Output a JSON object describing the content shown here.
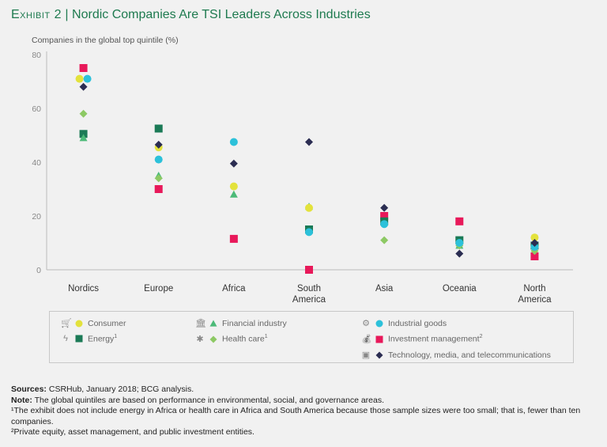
{
  "header": {
    "exhibit": "Exhibit 2",
    "separator": "|",
    "title": "Nordic Companies Are TSI Leaders Across Industries"
  },
  "chart_data": {
    "type": "scatter",
    "title": "Nordic Companies Are TSI Leaders Across Industries",
    "ylabel": "Companies in the global top quintile (%)",
    "ylim": [
      0,
      80
    ],
    "yticks": [
      0,
      20,
      40,
      60,
      80
    ],
    "grid": false,
    "legend_placement": "bottom",
    "categories": [
      "Nordics",
      "Europe",
      "Africa",
      "South America",
      "Asia",
      "Oceania",
      "North America"
    ],
    "category_labels": [
      [
        "Nordics"
      ],
      [
        "Europe"
      ],
      [
        "Africa"
      ],
      [
        "South",
        "America"
      ],
      [
        "Asia"
      ],
      [
        "Oceania"
      ],
      [
        "North",
        "America"
      ]
    ],
    "series": [
      {
        "name": "Consumer",
        "marker": "circle",
        "color": "#e3e23c",
        "icon": "shopping-cart-icon",
        "values": [
          71,
          45.5,
          31,
          23,
          null,
          null,
          12
        ]
      },
      {
        "name": "Financial industry",
        "marker": "triangle",
        "color": "#4cba78",
        "icon": "bank-icon",
        "values": [
          49,
          35,
          28,
          23.5,
          null,
          9,
          null
        ]
      },
      {
        "name": "Industrial goods",
        "marker": "circle",
        "color": "#2cc1da",
        "icon": "gears-icon",
        "values": [
          71,
          41,
          47.5,
          14,
          17,
          10,
          8.5
        ]
      },
      {
        "name": "Energy",
        "sup": "1",
        "marker": "square",
        "color": "#1b7a56",
        "icon": "lightning-icon",
        "values": [
          50.5,
          52.5,
          null,
          15,
          18,
          11,
          9
        ]
      },
      {
        "name": "Health care",
        "sup": "1",
        "marker": "diamond",
        "color": "#8dc964",
        "icon": "medical-icon",
        "values": [
          58,
          34,
          null,
          null,
          11,
          9,
          7
        ]
      },
      {
        "name": "Investment management",
        "sup": "2",
        "marker": "square",
        "color": "#e8195a",
        "icon": "money-bag-icon",
        "values": [
          75,
          30,
          11.5,
          0,
          20,
          18,
          5
        ]
      },
      {
        "name": "Technology, media, and telecommunications",
        "marker": "diamond",
        "color": "#2b2d52",
        "icon": "chip-icon",
        "values": [
          68,
          46.5,
          39.5,
          47.5,
          23,
          6,
          10
        ]
      }
    ]
  },
  "notes": {
    "sources_label": "Sources:",
    "sources": " CSRHub, January 2018; BCG analysis.",
    "note_label": "Note:",
    "note": " The global quintiles are based on performance in environmental, social, and governance areas.",
    "fn1": "¹The exhibit does not include energy in Africa or health care in Africa and South America because those sample sizes were too small; that is, fewer than ten companies.",
    "fn2": "²Private equity, asset management, and public investment entities."
  }
}
